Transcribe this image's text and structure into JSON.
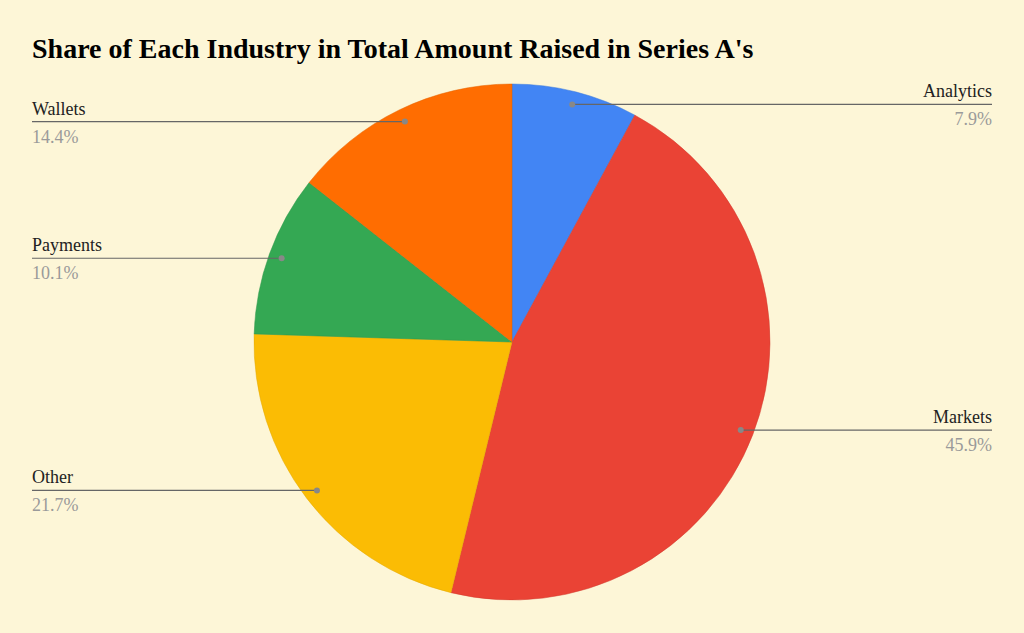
{
  "chart_data": {
    "type": "pie",
    "title": "Share of Each Industry in Total Amount Raised in Series A's",
    "categories": [
      "Analytics",
      "Markets",
      "Other",
      "Payments",
      "Wallets"
    ],
    "values": [
      7.9,
      45.9,
      21.7,
      10.1,
      14.4
    ],
    "value_labels": [
      "7.9%",
      "45.9%",
      "21.7%",
      "10.1%",
      "14.4%"
    ],
    "colors": [
      "#4285f4",
      "#ea4335",
      "#fbbc04",
      "#34a853",
      "#ff6d01"
    ],
    "data_labels": true
  }
}
